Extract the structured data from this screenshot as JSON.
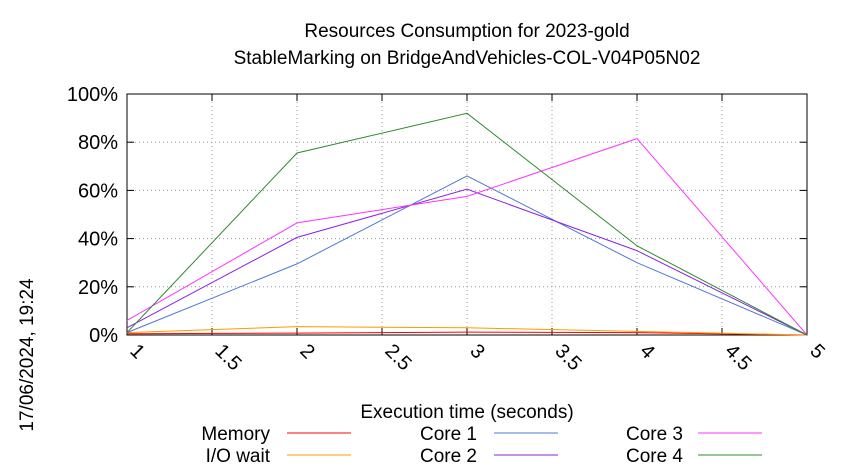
{
  "chart_data": {
    "type": "line",
    "title": "Resources Consumption for 2023-gold",
    "subtitle": "StableMarking on BridgeAndVehicles-COL-V04P05N02",
    "xlabel": "Execution time (seconds)",
    "ylabel": "",
    "timestamp": "17/06/2024, 19:24",
    "xlim": [
      1,
      5
    ],
    "ylim": [
      0,
      100
    ],
    "x_ticks": [
      "1",
      "1.5",
      "2",
      "2.5",
      "3",
      "3.5",
      "4",
      "4.5",
      "5"
    ],
    "y_ticks": [
      "0%",
      "20%",
      "40%",
      "60%",
      "80%",
      "100%"
    ],
    "grid": true,
    "legend_position": "bottom",
    "series": [
      {
        "name": "Memory",
        "color": "#ff0000",
        "x": [
          1,
          2,
          3,
          4,
          5
        ],
        "y": [
          0.5,
          0.8,
          1.2,
          1.0,
          0
        ]
      },
      {
        "name": "I/O wait",
        "color": "#ff9900",
        "x": [
          1,
          2,
          3,
          4,
          5
        ],
        "y": [
          1,
          3.5,
          3,
          1.5,
          0
        ]
      },
      {
        "name": "Core 1",
        "color": "#4f78d6",
        "x": [
          1,
          2,
          3,
          4,
          5
        ],
        "y": [
          1,
          29.5,
          66,
          30,
          0
        ]
      },
      {
        "name": "Core 2",
        "color": "#8a22e6",
        "x": [
          1,
          2,
          3,
          4,
          5
        ],
        "y": [
          3,
          40.5,
          60.5,
          35,
          0
        ]
      },
      {
        "name": "Core 3",
        "color": "#ff33ff",
        "x": [
          1,
          2,
          3,
          4,
          5
        ],
        "y": [
          6,
          46.5,
          57.5,
          81.5,
          0
        ]
      },
      {
        "name": "Core 4",
        "color": "#2e8b2e",
        "x": [
          1,
          2,
          3,
          4,
          5
        ],
        "y": [
          1,
          75.5,
          92,
          37,
          0
        ]
      }
    ]
  }
}
